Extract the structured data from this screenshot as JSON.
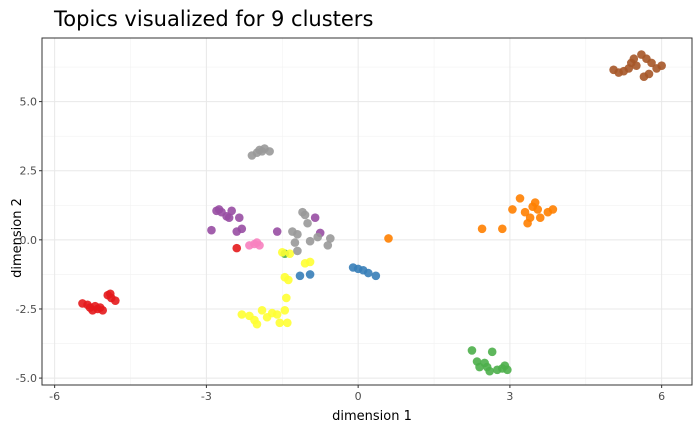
{
  "chart_data": {
    "type": "scatter",
    "title": "Topics visualized for 9 clusters",
    "xlabel": "dimension 1",
    "ylabel": "dimension 2",
    "xlim": [
      -6.25,
      6.6
    ],
    "ylim": [
      -5.25,
      7.3
    ],
    "xticks": [
      -6,
      -3,
      0,
      3,
      6
    ],
    "xtick_labels": [
      "-6",
      "-3",
      "0",
      "3",
      "6"
    ],
    "yticks": [
      -5.0,
      -2.5,
      0.0,
      2.5,
      5.0
    ],
    "ytick_labels": [
      "-5.0",
      "-2.5",
      "0.0",
      "2.5",
      "5.0"
    ],
    "grid": true,
    "legend": "none",
    "series": [
      {
        "color": "#e41a1c",
        "points": [
          [
            -5.45,
            -2.3
          ],
          [
            -5.35,
            -2.35
          ],
          [
            -5.3,
            -2.45
          ],
          [
            -5.25,
            -2.55
          ],
          [
            -5.2,
            -2.4
          ],
          [
            -5.15,
            -2.5
          ],
          [
            -5.1,
            -2.45
          ],
          [
            -5.05,
            -2.55
          ],
          [
            -4.95,
            -2.0
          ],
          [
            -4.9,
            -1.95
          ],
          [
            -4.88,
            -2.1
          ],
          [
            -4.8,
            -2.2
          ],
          [
            -2.4,
            -0.3
          ]
        ]
      },
      {
        "color": "#377eb8",
        "points": [
          [
            -1.15,
            -1.3
          ],
          [
            -0.95,
            -1.25
          ],
          [
            -0.1,
            -1.0
          ],
          [
            0.0,
            -1.05
          ],
          [
            0.1,
            -1.1
          ],
          [
            0.2,
            -1.2
          ],
          [
            0.35,
            -1.3
          ]
        ]
      },
      {
        "color": "#4daf4a",
        "points": [
          [
            -1.45,
            -0.5
          ],
          [
            2.25,
            -4.0
          ],
          [
            2.35,
            -4.4
          ],
          [
            2.4,
            -4.6
          ],
          [
            2.5,
            -4.45
          ],
          [
            2.55,
            -4.6
          ],
          [
            2.6,
            -4.75
          ],
          [
            2.65,
            -4.05
          ],
          [
            2.75,
            -4.7
          ],
          [
            2.85,
            -4.65
          ],
          [
            2.9,
            -4.55
          ],
          [
            2.95,
            -4.7
          ]
        ]
      },
      {
        "color": "#984ea3",
        "points": [
          [
            -2.9,
            0.35
          ],
          [
            -2.8,
            1.05
          ],
          [
            -2.75,
            1.1
          ],
          [
            -2.7,
            1.0
          ],
          [
            -2.6,
            0.85
          ],
          [
            -2.55,
            0.8
          ],
          [
            -2.5,
            1.05
          ],
          [
            -2.4,
            0.3
          ],
          [
            -2.3,
            0.4
          ],
          [
            -2.35,
            0.8
          ],
          [
            -1.6,
            0.3
          ],
          [
            -0.85,
            0.8
          ],
          [
            -0.75,
            0.25
          ]
        ]
      },
      {
        "color": "#ff7f00",
        "points": [
          [
            0.6,
            0.05
          ],
          [
            2.45,
            0.4
          ],
          [
            2.85,
            0.4
          ],
          [
            3.05,
            1.1
          ],
          [
            3.2,
            1.5
          ],
          [
            3.3,
            1.0
          ],
          [
            3.35,
            0.6
          ],
          [
            3.4,
            0.8
          ],
          [
            3.45,
            1.2
          ],
          [
            3.5,
            1.35
          ],
          [
            3.55,
            1.1
          ],
          [
            3.6,
            0.8
          ],
          [
            3.75,
            1.0
          ],
          [
            3.85,
            1.1
          ]
        ]
      },
      {
        "color": "#ffff33",
        "points": [
          [
            -2.3,
            -2.7
          ],
          [
            -2.15,
            -2.75
          ],
          [
            -2.05,
            -2.9
          ],
          [
            -2.0,
            -3.05
          ],
          [
            -1.9,
            -2.55
          ],
          [
            -1.8,
            -2.8
          ],
          [
            -1.7,
            -2.65
          ],
          [
            -1.6,
            -2.7
          ],
          [
            -1.55,
            -3.0
          ],
          [
            -1.45,
            -2.55
          ],
          [
            -1.4,
            -3.0
          ],
          [
            -1.42,
            -2.1
          ],
          [
            -1.45,
            -1.35
          ],
          [
            -1.38,
            -1.45
          ],
          [
            -1.35,
            -0.5
          ],
          [
            -1.5,
            -0.45
          ],
          [
            -1.05,
            -0.85
          ],
          [
            -0.95,
            -0.8
          ]
        ]
      },
      {
        "color": "#a65628",
        "points": [
          [
            5.05,
            6.15
          ],
          [
            5.15,
            6.05
          ],
          [
            5.25,
            6.1
          ],
          [
            5.35,
            6.2
          ],
          [
            5.4,
            6.4
          ],
          [
            5.45,
            6.55
          ],
          [
            5.5,
            6.3
          ],
          [
            5.6,
            6.7
          ],
          [
            5.65,
            5.9
          ],
          [
            5.7,
            6.55
          ],
          [
            5.75,
            6.0
          ],
          [
            5.8,
            6.4
          ],
          [
            5.9,
            6.2
          ],
          [
            6.0,
            6.3
          ]
        ]
      },
      {
        "color": "#f781bf",
        "points": [
          [
            -2.15,
            -0.2
          ],
          [
            -2.05,
            -0.15
          ],
          [
            -2.0,
            -0.1
          ],
          [
            -1.95,
            -0.2
          ]
        ]
      },
      {
        "color": "#999999",
        "points": [
          [
            -2.1,
            3.05
          ],
          [
            -2.0,
            3.15
          ],
          [
            -1.95,
            3.25
          ],
          [
            -1.9,
            3.2
          ],
          [
            -1.85,
            3.3
          ],
          [
            -1.75,
            3.2
          ],
          [
            -1.3,
            0.3
          ],
          [
            -1.2,
            0.2
          ],
          [
            -1.25,
            -0.1
          ],
          [
            -1.2,
            -0.4
          ],
          [
            -1.1,
            1.0
          ],
          [
            -1.05,
            0.9
          ],
          [
            -1.0,
            0.6
          ],
          [
            -0.95,
            -0.05
          ],
          [
            -0.8,
            0.1
          ],
          [
            -0.6,
            -0.2
          ],
          [
            -0.55,
            0.05
          ]
        ]
      }
    ]
  }
}
